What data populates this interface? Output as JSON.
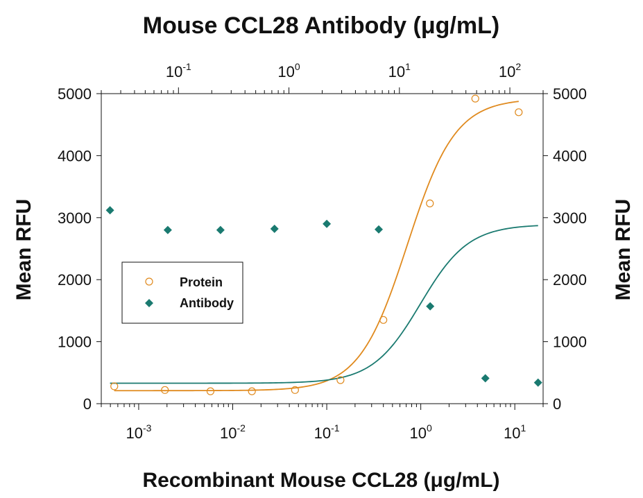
{
  "chart_data": {
    "type": "scatter",
    "title": "Mouse CCL28 Antibody (μg/mL)",
    "xlabel": "Recombinant Mouse CCL28 (μg/mL)",
    "ylabel_left": "Mean RFU",
    "ylabel_right": "Mean RFU",
    "ylim": [
      0,
      5000
    ],
    "y_ticks": [
      0,
      1000,
      2000,
      3000,
      4000,
      5000
    ],
    "x_bottom": {
      "scale": "log",
      "range": [
        0.0004,
        20
      ],
      "ticks": [
        {
          "value": 0.001,
          "base": "10",
          "exp": "-3"
        },
        {
          "value": 0.01,
          "base": "10",
          "exp": "-2"
        },
        {
          "value": 0.1,
          "base": "10",
          "exp": "-1"
        },
        {
          "value": 1,
          "base": "10",
          "exp": "0"
        },
        {
          "value": 10,
          "base": "10",
          "exp": "1"
        }
      ]
    },
    "x_top": {
      "scale": "log",
      "range": [
        0.02,
        200
      ],
      "ticks": [
        {
          "value": 0.1,
          "base": "10",
          "exp": "-1"
        },
        {
          "value": 1,
          "base": "10",
          "exp": "0"
        },
        {
          "value": 10,
          "base": "10",
          "exp": "1"
        },
        {
          "value": 100,
          "base": "10",
          "exp": "2"
        }
      ]
    },
    "legend": {
      "position": "left-middle"
    },
    "series": [
      {
        "name": "Protein",
        "axis": "bottom",
        "marker": "circle-open",
        "color": "#E08A1E",
        "x": [
          0.00055,
          0.0019,
          0.0058,
          0.016,
          0.046,
          0.14,
          0.4,
          1.25,
          3.8,
          11
        ],
        "y": [
          280,
          220,
          200,
          200,
          220,
          380,
          1350,
          3230,
          4920,
          4700
        ],
        "fit": {
          "bottom": 210,
          "top": 4920,
          "ec50": 0.72,
          "hill": 1.7
        }
      },
      {
        "name": "Antibody",
        "axis": "top",
        "marker": "diamond-filled",
        "color": "#1A7A70",
        "x": [
          0.024,
          0.08,
          0.24,
          0.74,
          2.2,
          6.5,
          19,
          60,
          180
        ],
        "y": [
          3120,
          2800,
          2800,
          2820,
          2900,
          2810,
          1570,
          410,
          340
        ],
        "fit": {
          "bottom": 330,
          "top": 2890,
          "ec50": 15.5,
          "hill": 2.0
        }
      }
    ]
  }
}
